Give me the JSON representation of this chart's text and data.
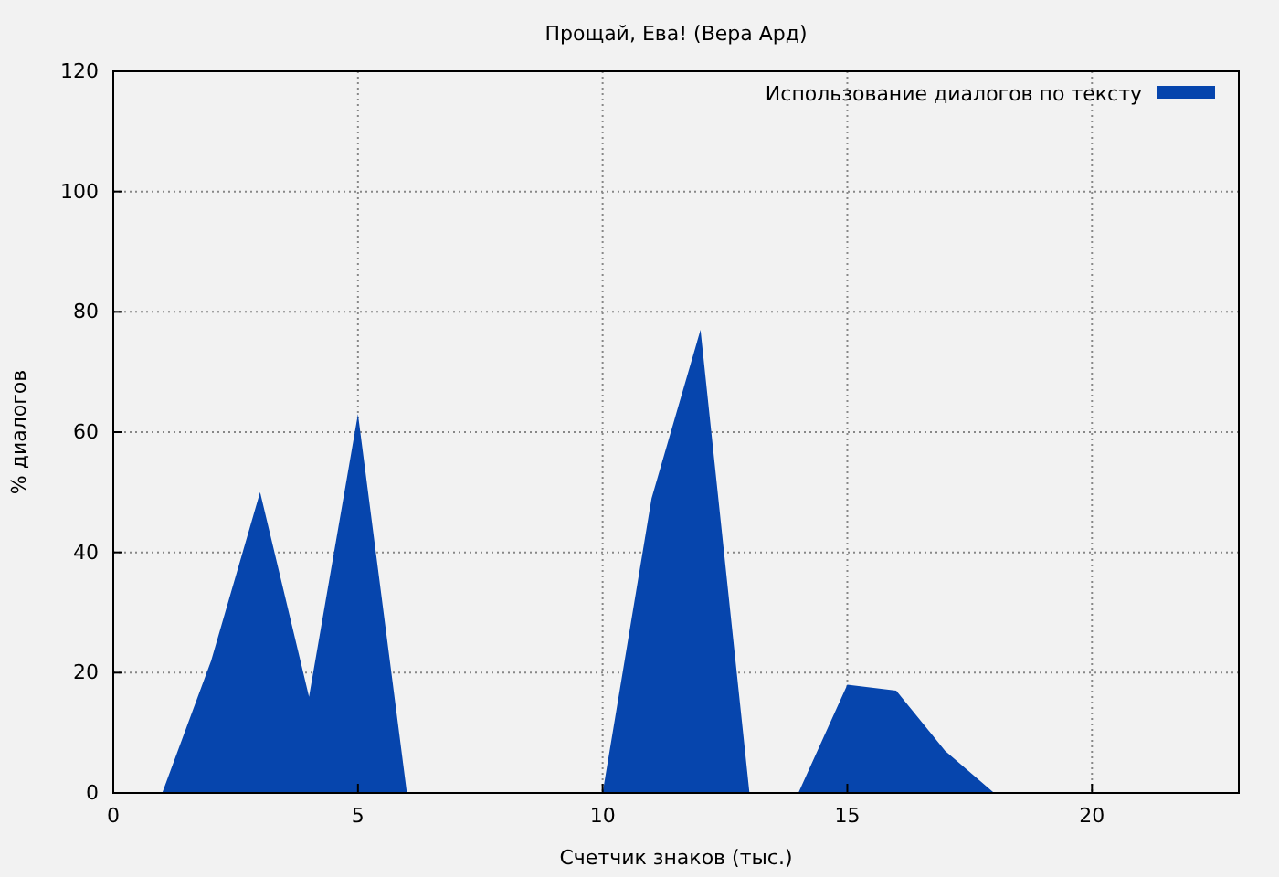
{
  "chart_data": {
    "type": "area",
    "title": "Прощай, Ева! (Вера Ард)",
    "xlabel": "Счетчик знаков (тыс.)",
    "ylabel": "% диалогов",
    "x": [
      0,
      1,
      2,
      3,
      4,
      5,
      6,
      7,
      8,
      9,
      10,
      11,
      12,
      13,
      14,
      15,
      16,
      17,
      18,
      19,
      20,
      21,
      22
    ],
    "series": [
      {
        "name": "Использование диалогов по тексту",
        "color": "#0645ad",
        "values": [
          0,
          0,
          22,
          50,
          16,
          63,
          0,
          0,
          0,
          0,
          0,
          49,
          77,
          0,
          0,
          18,
          17,
          7,
          0,
          0,
          0,
          0,
          0
        ]
      }
    ],
    "xlim": [
      0,
      23
    ],
    "xticks": [
      0,
      5,
      10,
      15,
      20
    ],
    "ylim": [
      0,
      120
    ],
    "yticks": [
      0,
      20,
      40,
      60,
      80,
      100,
      120
    ],
    "grid": true,
    "legend": "top right"
  }
}
